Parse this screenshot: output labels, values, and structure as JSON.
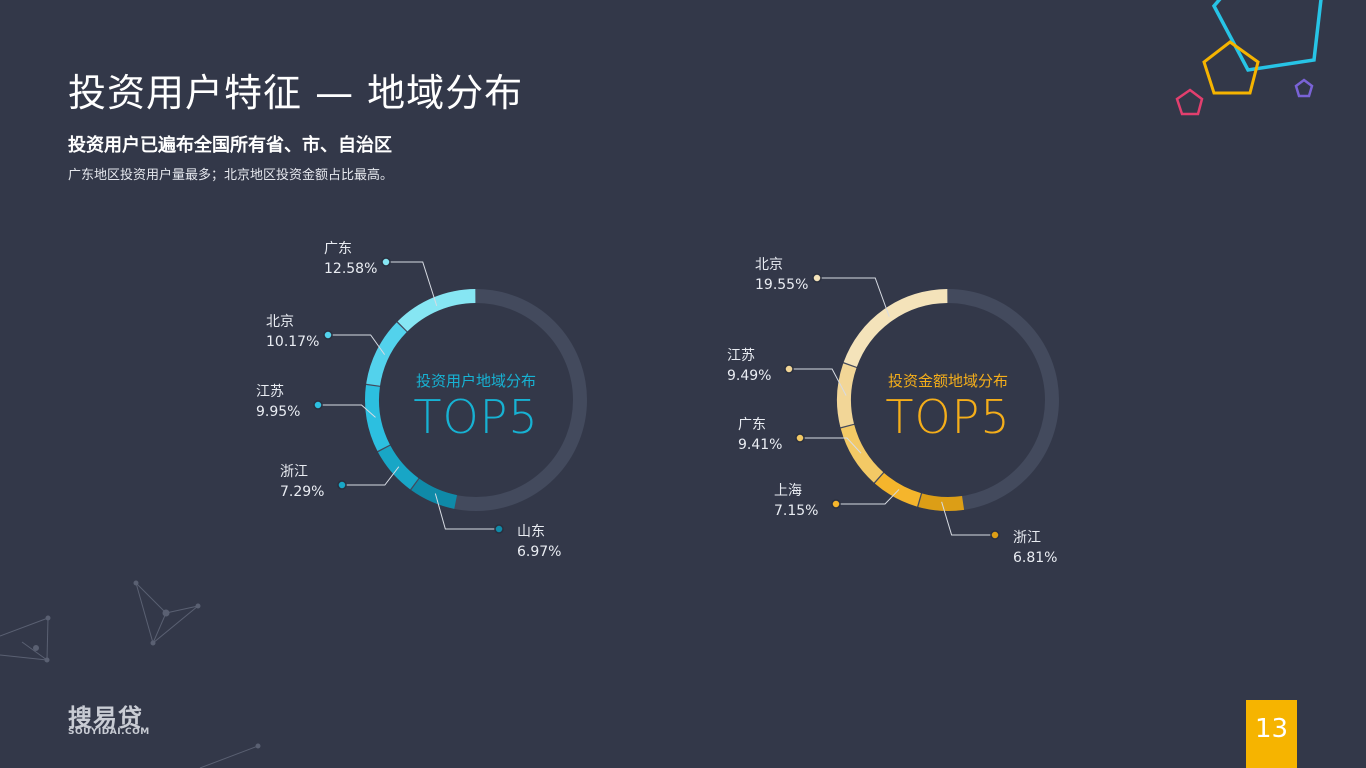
{
  "header": {
    "title": "投资用户特征 — 地域分布",
    "subtitle": "投资用户已遍布全国所有省、市、自治区",
    "description": "广东地区投资用户量最多；北京地区投资金额占比最高。"
  },
  "logo": {
    "name": "搜易贷",
    "domain": "SOUYIDAI.COM"
  },
  "page_number": "13",
  "colors": {
    "background": "#333849",
    "track": "#434a5d",
    "left_center": "#17b2d3",
    "right_center": "#f5ae1a",
    "page_badge": "#f6b400"
  },
  "chart_data": [
    {
      "type": "pie",
      "caption": "投资用户地域分布",
      "center_big": "TOP5",
      "categories": [
        "广东",
        "北京",
        "江苏",
        "浙江",
        "山东"
      ],
      "values": [
        12.58,
        10.17,
        9.95,
        7.29,
        6.97
      ],
      "value_labels": [
        "12.58%",
        "10.17%",
        "9.95%",
        "7.29%",
        "6.97%"
      ],
      "colors": [
        "#86e6f3",
        "#53d2ec",
        "#2cbfe0",
        "#18a6c6",
        "#0f8aa8"
      ]
    },
    {
      "type": "pie",
      "caption": "投资金额地域分布",
      "center_big": "TOP5",
      "categories": [
        "北京",
        "江苏",
        "广东",
        "上海",
        "浙江"
      ],
      "values": [
        19.55,
        9.49,
        9.41,
        7.15,
        6.81
      ],
      "value_labels": [
        "19.55%",
        "9.49%",
        "9.41%",
        "7.15%",
        "6.81%"
      ],
      "colors": [
        "#f4e3ba",
        "#f2d697",
        "#f3c965",
        "#f5b52c",
        "#dc9e16"
      ]
    }
  ]
}
